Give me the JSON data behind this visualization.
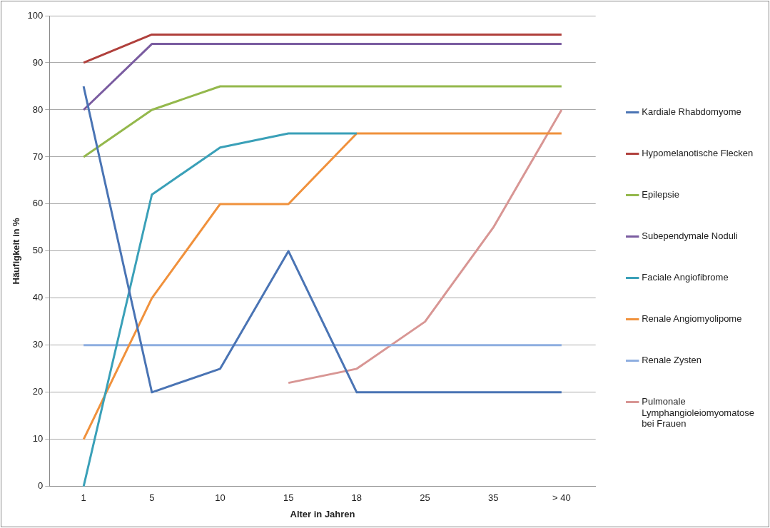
{
  "chart_data": {
    "type": "line",
    "xlabel": "Alter in Jahren",
    "ylabel": "Häufigkeit in %",
    "categories": [
      "1",
      "5",
      "10",
      "15",
      "18",
      "25",
      "35",
      "> 40"
    ],
    "ylim": [
      0,
      100
    ],
    "yticks": [
      0,
      10,
      20,
      30,
      40,
      50,
      60,
      70,
      80,
      90,
      100
    ],
    "grid": "y",
    "legend": "right",
    "marker": "none",
    "series": [
      {
        "name": "Kardiale Rhabdomyome",
        "color": "#4a74b4",
        "values": [
          85,
          20,
          25,
          50,
          20,
          20,
          20,
          20
        ]
      },
      {
        "name": "Hypomelanotische Flecken",
        "color": "#b0403c",
        "values": [
          90,
          96,
          96,
          96,
          96,
          96,
          96,
          96
        ]
      },
      {
        "name": "Epilepsie",
        "color": "#94b84c",
        "values": [
          70,
          80,
          85,
          85,
          85,
          85,
          85,
          85
        ]
      },
      {
        "name": "Subependymale Noduli",
        "color": "#7a5ca0",
        "values": [
          80,
          94,
          94,
          94,
          94,
          94,
          94,
          94
        ]
      },
      {
        "name": "Faciale Angiofibrome",
        "color": "#3aa0b8",
        "values": [
          0,
          62,
          72,
          75,
          75,
          null,
          null,
          null
        ]
      },
      {
        "name": "Renale Angiomyolipome",
        "color": "#f0913c",
        "values": [
          10,
          40,
          60,
          60,
          75,
          75,
          75,
          75
        ]
      },
      {
        "name": "Renale Zysten",
        "color": "#8eaee0",
        "values": [
          30,
          30,
          30,
          30,
          30,
          30,
          30,
          30
        ]
      },
      {
        "name": "Pulmonale Lymphangioleiomyomatose bei Frauen",
        "color": "#d89694",
        "values": [
          null,
          null,
          null,
          22,
          25,
          35,
          55,
          80
        ]
      }
    ]
  }
}
